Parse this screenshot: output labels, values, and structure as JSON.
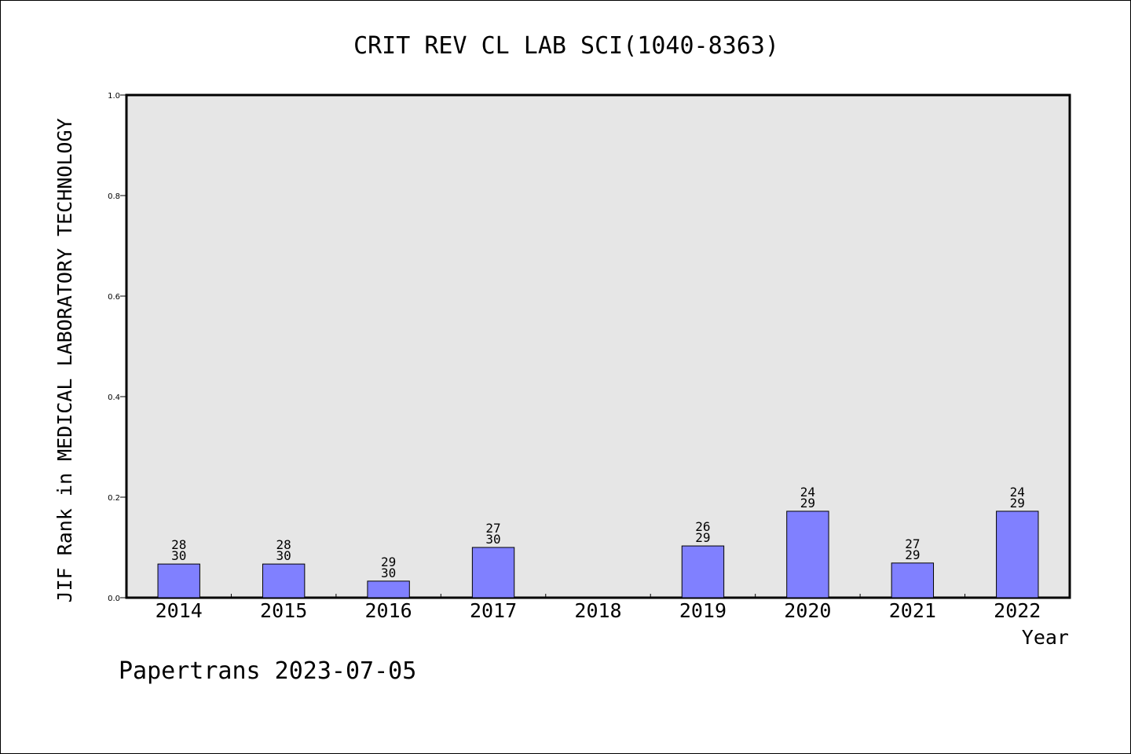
{
  "chart_data": {
    "type": "bar",
    "title": "CRIT REV CL LAB SCI(1040-8363)",
    "ylabel": "JIF Rank in MEDICAL LABORATORY TECHNOLOGY",
    "xlabel": "Year",
    "ylim": [
      0,
      1.0
    ],
    "yticks": [
      "0.0",
      "0.2",
      "0.4",
      "0.6",
      "0.8",
      "1.0"
    ],
    "categories": [
      "2014",
      "2015",
      "2016",
      "2017",
      "2018",
      "2019",
      "2020",
      "2021",
      "2022"
    ],
    "values": [
      0.067,
      0.067,
      0.033,
      0.1,
      null,
      0.103,
      0.172,
      0.069,
      0.172
    ],
    "rank_labels": [
      {
        "rank": "28",
        "total": "30"
      },
      {
        "rank": "28",
        "total": "30"
      },
      {
        "rank": "29",
        "total": "30"
      },
      {
        "rank": "27",
        "total": "30"
      },
      null,
      {
        "rank": "26",
        "total": "29"
      },
      {
        "rank": "24",
        "total": "29"
      },
      {
        "rank": "27",
        "total": "29"
      },
      {
        "rank": "24",
        "total": "29"
      }
    ],
    "bar_color": "#8080ff",
    "plot_background": "#e6e6e6",
    "grid": false,
    "legend": "none"
  },
  "footer": "Papertrans 2023-07-05"
}
